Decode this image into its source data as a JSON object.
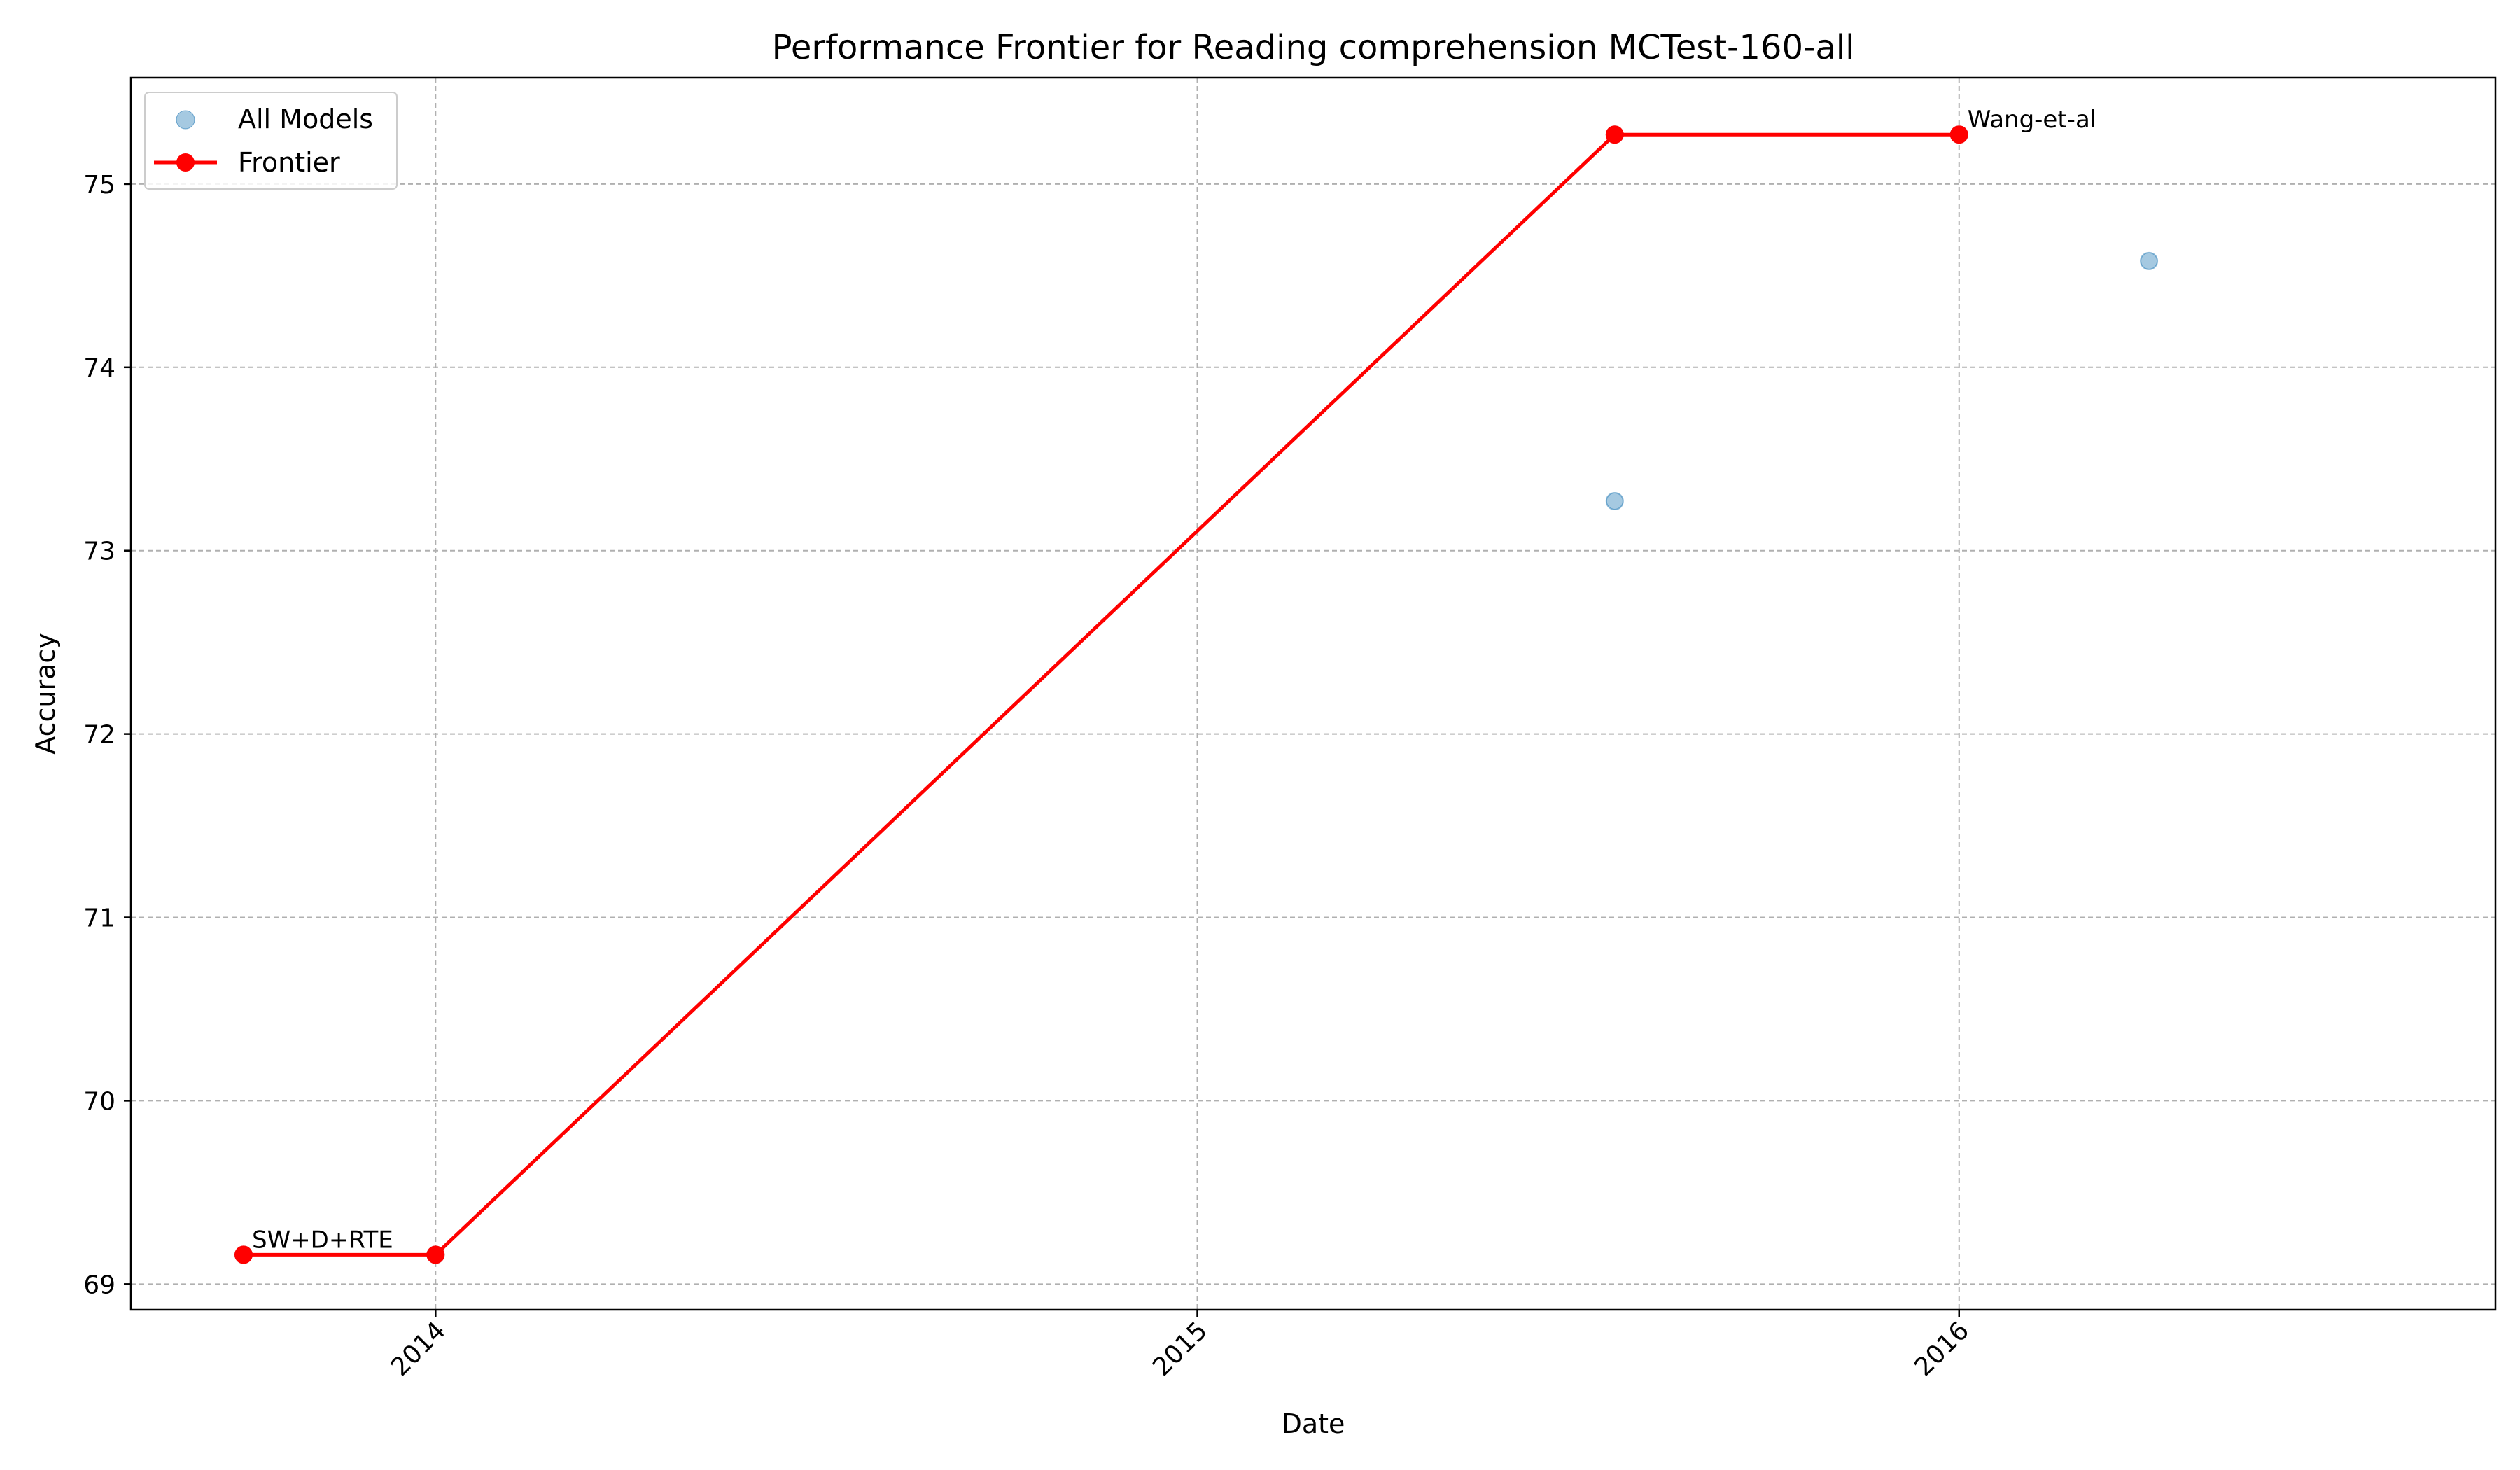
{
  "chart_data": {
    "type": "scatter",
    "title": "Performance Frontier for Reading comprehension MCTest-160-all",
    "xlabel": "Date",
    "ylabel": "Accuracy",
    "x_ticks": [
      "2014",
      "2015",
      "2016"
    ],
    "y_ticks": [
      69,
      70,
      71,
      72,
      73,
      74,
      75
    ],
    "xlim": [
      "2013-08-08",
      "2016-09-14"
    ],
    "ylim": [
      68.86,
      75.58
    ],
    "grid": true,
    "legend_position": "top-left",
    "series": [
      {
        "name": "All Models",
        "kind": "scatter",
        "color": "#1f77b4",
        "points": [
          {
            "x": "2013-10-01",
            "y": 69.16
          },
          {
            "x": "2014-01-01",
            "y": 69.16
          },
          {
            "x": "2015-07-20",
            "y": 75.27
          },
          {
            "x": "2015-07-20",
            "y": 73.27
          },
          {
            "x": "2016-01-01",
            "y": 75.27
          },
          {
            "x": "2016-04-01",
            "y": 74.58
          }
        ]
      },
      {
        "name": "Frontier",
        "kind": "line",
        "color": "#ff0000",
        "points": [
          {
            "x": "2013-10-01",
            "y": 69.16
          },
          {
            "x": "2014-01-01",
            "y": 69.16
          },
          {
            "x": "2015-07-20",
            "y": 75.27
          },
          {
            "x": "2016-01-01",
            "y": 75.27
          }
        ]
      }
    ],
    "annotations": [
      {
        "text": "SW+D+RTE",
        "x": "2013-10-01",
        "y": 69.16
      },
      {
        "text": "Wang-et-al",
        "x": "2016-01-01",
        "y": 75.27
      }
    ]
  }
}
